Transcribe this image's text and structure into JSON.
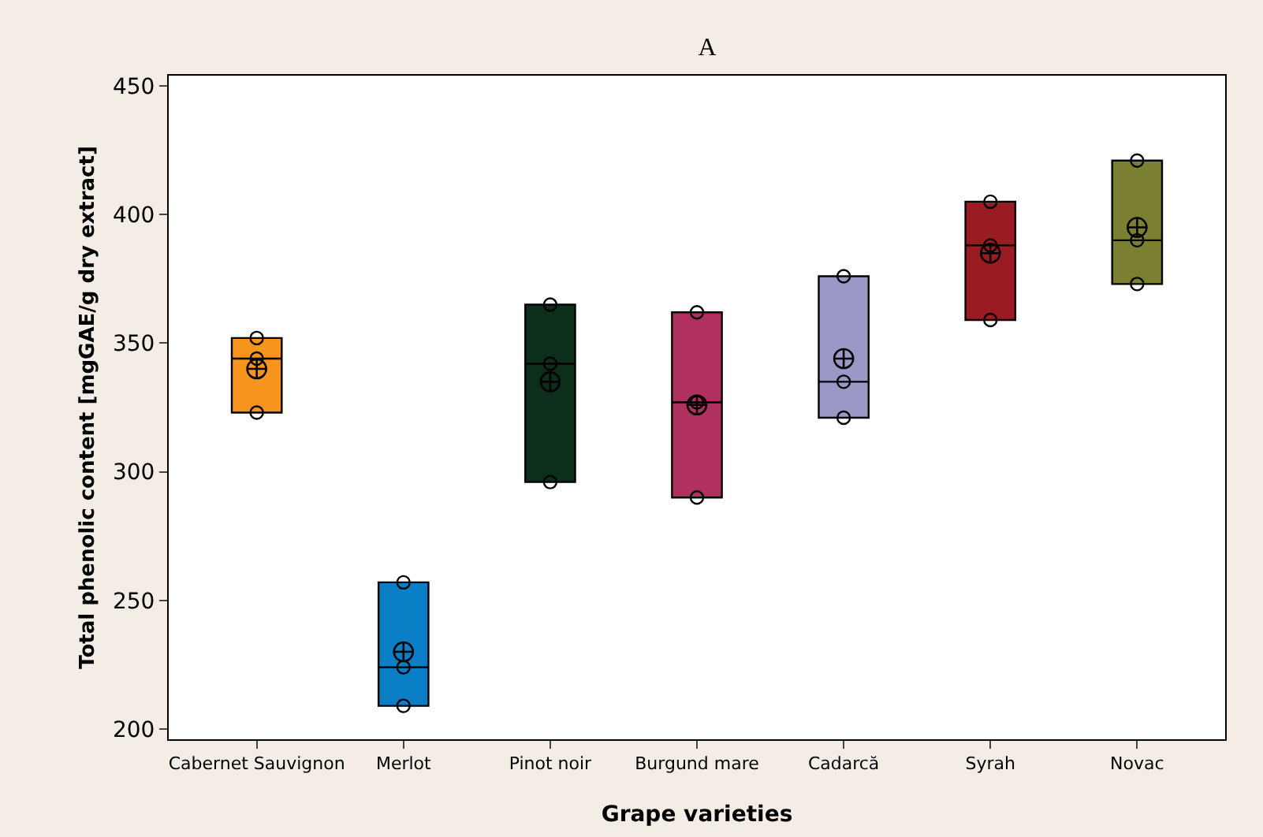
{
  "chart_data": {
    "type": "box",
    "title": "A",
    "xlabel": "Grape varieties",
    "ylabel": "Total phenolic content [mgGAE/g dry extract]",
    "categories": [
      "Cabernet Sauvignon",
      "Merlot",
      "Pinot noir",
      "Burgund mare",
      "Cadarcă",
      "Syrah",
      "Novac"
    ],
    "colors": [
      "#f7941d",
      "#0a7fc6",
      "#0d2e1a",
      "#b03060",
      "#9b98c8",
      "#9b1b22",
      "#7a8030"
    ],
    "boxes": [
      {
        "low": 323,
        "q1": 323,
        "median": 344,
        "q3": 352,
        "high": 352,
        "mean": 340
      },
      {
        "low": 209,
        "q1": 209,
        "median": 224,
        "q3": 257,
        "high": 257,
        "mean": 230
      },
      {
        "low": 296,
        "q1": 296,
        "median": 342,
        "q3": 365,
        "high": 365,
        "mean": 335
      },
      {
        "low": 290,
        "q1": 290,
        "median": 327,
        "q3": 362,
        "high": 362,
        "mean": 326
      },
      {
        "low": 321,
        "q1": 321,
        "median": 335,
        "q3": 376,
        "high": 376,
        "mean": 344
      },
      {
        "low": 359,
        "q1": 359,
        "median": 388,
        "q3": 405,
        "high": 405,
        "mean": 385
      },
      {
        "low": 373,
        "q1": 373,
        "median": 390,
        "q3": 421,
        "high": 421,
        "mean": 395
      }
    ],
    "series": [
      {
        "type": "scatter",
        "color": "#000000",
        "x": [
          "Cabernet Sauvignon",
          "Cabernet Sauvignon",
          "Cabernet Sauvignon",
          "Merlot",
          "Merlot",
          "Merlot",
          "Pinot noir",
          "Pinot noir",
          "Pinot noir",
          "Burgund mare",
          "Burgund mare",
          "Burgund mare",
          "Cadarcă",
          "Cadarcă",
          "Cadarcă",
          "Syrah",
          "Syrah",
          "Syrah",
          "Novac",
          "Novac",
          "Novac"
        ],
        "values": [
          352,
          344,
          323,
          257,
          224,
          209,
          365,
          342,
          296,
          362,
          327,
          290,
          376,
          335,
          321,
          405,
          388,
          359,
          421,
          390,
          373
        ]
      }
    ],
    "marker": "circle",
    "ylim": [
      196,
      454
    ],
    "yticks": [
      200,
      250,
      300,
      350,
      400,
      450
    ],
    "grid": false
  }
}
